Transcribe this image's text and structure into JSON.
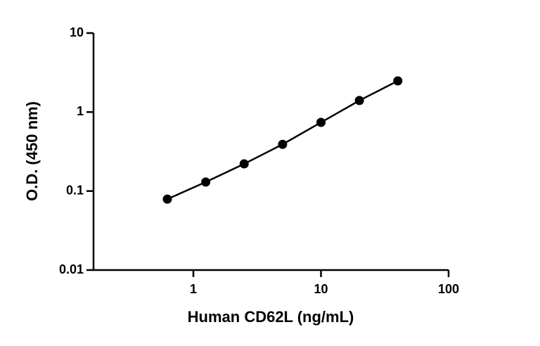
{
  "chart_data": {
    "type": "scatter",
    "x_label": "Human CD62L (ng/mL)",
    "y_label": "O.D. (450 nm)",
    "x": [
      0.625,
      1.25,
      2.5,
      5,
      10,
      20,
      40
    ],
    "series": [
      {
        "color": "#000000",
        "values": [
          0.079,
          0.13,
          0.221,
          0.39,
          0.74,
          1.4,
          2.48
        ]
      }
    ],
    "xlim": [
      0.165,
      100
    ],
    "xticks": [
      1,
      10,
      100
    ],
    "ylim": [
      0.01,
      10
    ],
    "yticks": [
      0.01,
      0.1,
      1,
      10
    ],
    "xscale": "log",
    "yscale": "log",
    "connect": true
  }
}
